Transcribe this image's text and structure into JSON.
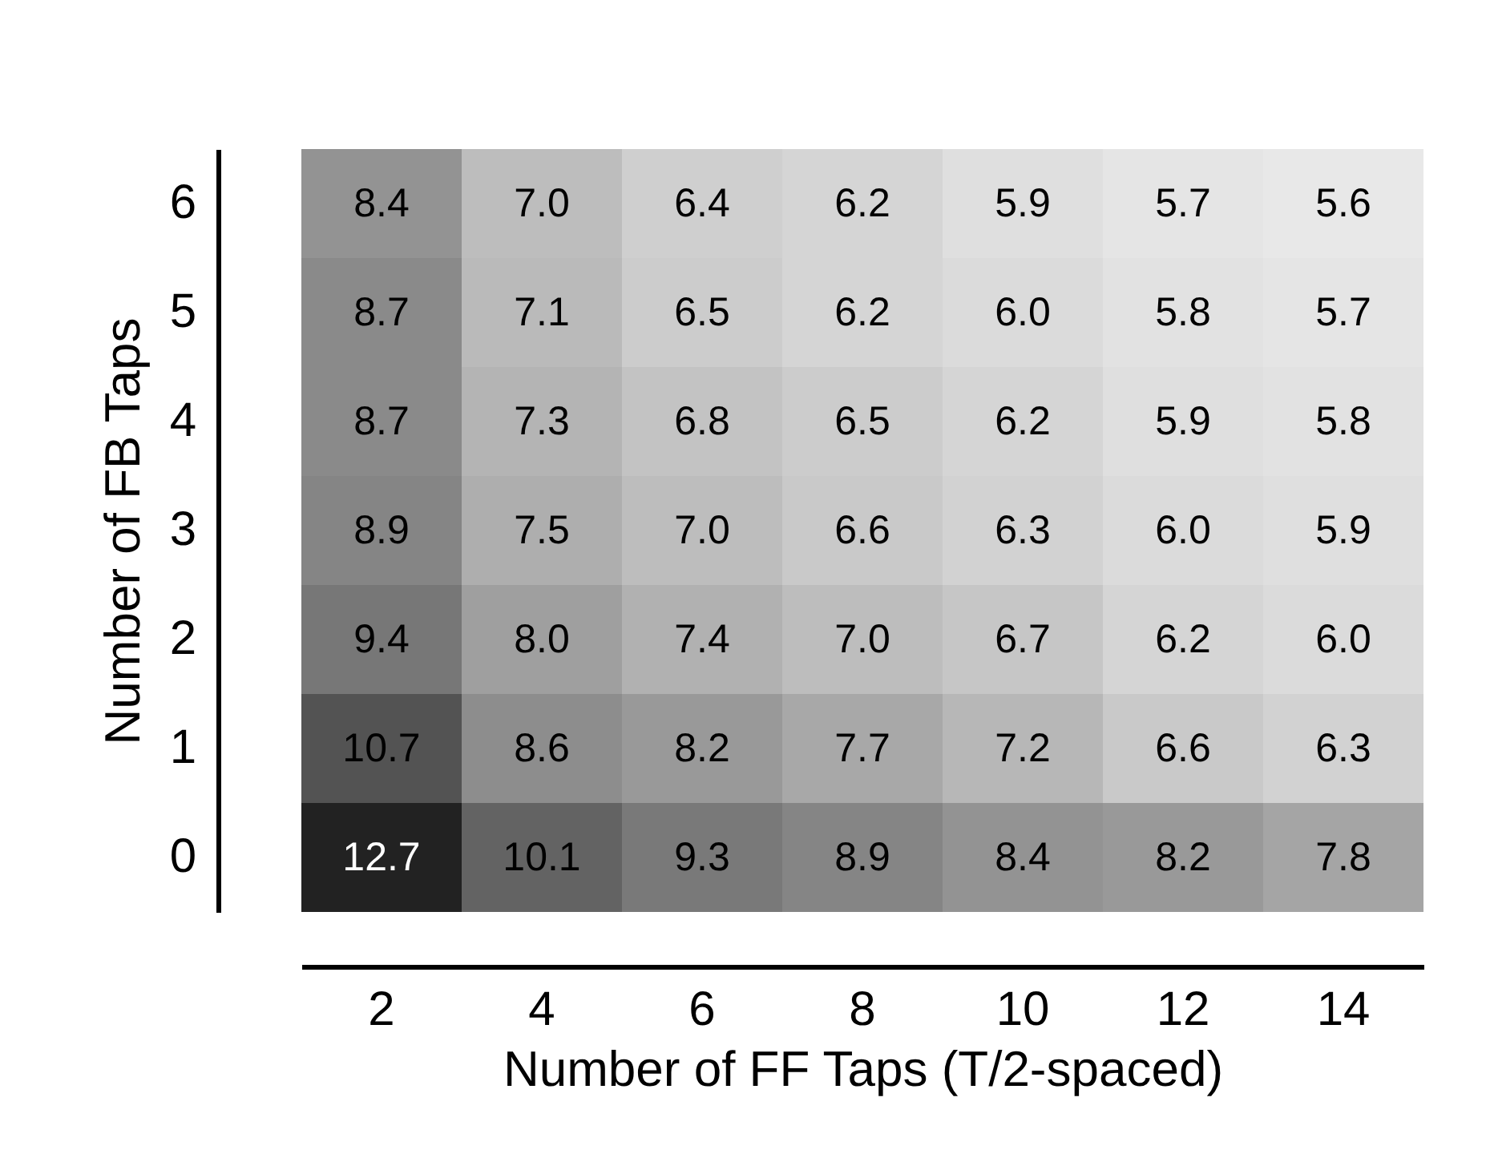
{
  "chart_data": {
    "type": "heatmap",
    "xlabel": "Number of FF Taps (T/2-spaced)",
    "ylabel": "Number of FB Taps",
    "categories": [
      "2",
      "4",
      "6",
      "8",
      "10",
      "12",
      "14"
    ],
    "y_categories": [
      "6",
      "5",
      "4",
      "3",
      "2",
      "1",
      "0"
    ],
    "cells": [
      [
        8.4,
        7.0,
        6.4,
        6.2,
        5.9,
        5.7,
        5.6
      ],
      [
        8.7,
        7.1,
        6.5,
        6.2,
        6.0,
        5.8,
        5.7
      ],
      [
        8.7,
        7.3,
        6.8,
        6.5,
        6.2,
        5.9,
        5.8
      ],
      [
        8.9,
        7.5,
        7.0,
        6.6,
        6.3,
        6.0,
        5.9
      ],
      [
        9.4,
        8.0,
        7.4,
        7.0,
        6.7,
        6.2,
        6.0
      ],
      [
        10.7,
        8.6,
        8.2,
        7.7,
        7.2,
        6.6,
        6.3
      ],
      [
        12.7,
        10.1,
        9.3,
        8.9,
        8.4,
        8.2,
        7.8
      ]
    ],
    "cell_labels": [
      [
        "8.4",
        "7.0",
        "6.4",
        "6.2",
        "5.9",
        "5.7",
        "5.6"
      ],
      [
        "8.7",
        "7.1",
        "6.5",
        "6.2",
        "6.0",
        "5.8",
        "5.7"
      ],
      [
        "8.7",
        "7.3",
        "6.8",
        "6.5",
        "6.2",
        "5.9",
        "5.8"
      ],
      [
        "8.9",
        "7.5",
        "7.0",
        "6.6",
        "6.3",
        "6.0",
        "5.9"
      ],
      [
        "9.4",
        "8.0",
        "7.4",
        "7.0",
        "6.7",
        "6.2",
        "6.0"
      ],
      [
        "10.7",
        "8.6",
        "8.2",
        "7.7",
        "7.2",
        "6.6",
        "6.3"
      ],
      [
        "12.7",
        "10.1",
        "9.3",
        "8.9",
        "8.4",
        "8.2",
        "7.8"
      ]
    ]
  }
}
